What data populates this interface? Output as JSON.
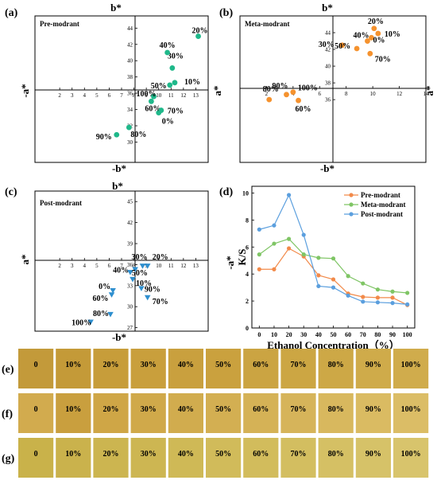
{
  "panels": {
    "a": {
      "label": "(a)",
      "box_title": "Pre-modrant",
      "b_pos": "b*",
      "b_neg": "-b*",
      "a_neg": "-a*",
      "a_pos": "a*",
      "yticks": [
        30,
        32,
        34,
        36,
        38,
        40,
        42,
        44
      ],
      "xticks": [
        2,
        3,
        4,
        5,
        6,
        7,
        8,
        9,
        10,
        11,
        12,
        13
      ]
    },
    "b": {
      "label": "(b)",
      "box_title": "Meta-modrant",
      "b_pos": "b*",
      "b_neg": "-b*",
      "a_neg": "a*",
      "a_pos": "a*",
      "yticks": [
        36,
        38,
        40,
        42,
        44
      ],
      "xticks": [
        2,
        4,
        6,
        8,
        10,
        12,
        14
      ]
    },
    "c": {
      "label": "(c)",
      "box_title": "Post-modrant",
      "b_pos": "b*",
      "b_neg": "-b*",
      "a_neg": "a*",
      "a_pos": "a*",
      "yticks": [
        27,
        30,
        33,
        36,
        39,
        42,
        45
      ],
      "xticks": [
        2,
        3,
        4,
        5,
        6,
        7,
        8,
        9,
        10,
        11,
        12,
        13
      ]
    },
    "d": {
      "label": "(d)",
      "a_label": "-a*"
    }
  },
  "chart_data": [
    {
      "type": "scatter",
      "panel": "a",
      "title": "Pre-modrant",
      "xlabel": "a*",
      "ylabel": "b*",
      "xlim": [
        0,
        14
      ],
      "ylim": [
        27.5,
        45.5
      ],
      "color": "#1fb88a",
      "points": [
        {
          "label": "0%",
          "x": 10.0,
          "y": 33.6
        },
        {
          "label": "10%",
          "x": 11.3,
          "y": 37.3
        },
        {
          "label": "20%",
          "x": 13.2,
          "y": 43.0
        },
        {
          "label": "30%",
          "x": 11.1,
          "y": 39.1
        },
        {
          "label": "40%",
          "x": 10.7,
          "y": 41.0
        },
        {
          "label": "50%",
          "x": 10.9,
          "y": 37.0
        },
        {
          "label": "60%",
          "x": 9.4,
          "y": 35.0
        },
        {
          "label": "70%",
          "x": 10.2,
          "y": 33.9
        },
        {
          "label": "80%",
          "x": 7.6,
          "y": 31.8
        },
        {
          "label": "90%",
          "x": 6.6,
          "y": 30.9
        },
        {
          "label": "100%",
          "x": 9.6,
          "y": 35.6
        }
      ]
    },
    {
      "type": "scatter",
      "panel": "b",
      "title": "Meta-modrant",
      "xlabel": "a*",
      "ylabel": "b*",
      "xlim": [
        0,
        14
      ],
      "ylim": [
        28.5,
        46
      ],
      "color": "#f5922e",
      "points": [
        {
          "label": "0%",
          "x": 9.9,
          "y": 43.4
        },
        {
          "label": "10%",
          "x": 10.4,
          "y": 43.9
        },
        {
          "label": "20%",
          "x": 10.1,
          "y": 44.5
        },
        {
          "label": "30%",
          "x": 7.7,
          "y": 42.5
        },
        {
          "label": "40%",
          "x": 9.6,
          "y": 43.0
        },
        {
          "label": "50%",
          "x": 8.8,
          "y": 42.1
        },
        {
          "label": "60%",
          "x": 4.4,
          "y": 35.9
        },
        {
          "label": "70%",
          "x": 9.8,
          "y": 41.5
        },
        {
          "label": "80%",
          "x": 2.2,
          "y": 36.0
        },
        {
          "label": "90%",
          "x": 3.5,
          "y": 36.6
        },
        {
          "label": "100%",
          "x": 4.0,
          "y": 36.9
        }
      ]
    },
    {
      "type": "scatter",
      "panel": "c",
      "title": "Post-modrant",
      "xlabel": "a*",
      "ylabel": "b*",
      "xlim": [
        0,
        14
      ],
      "ylim": [
        26.5,
        46.5
      ],
      "color": "#2e8fcf",
      "points": [
        {
          "label": "0%",
          "x": 6.3,
          "y": 32.3
        },
        {
          "label": "10%",
          "x": 7.9,
          "y": 33.9
        },
        {
          "label": "20%",
          "x": 9.1,
          "y": 35.8
        },
        {
          "label": "30%",
          "x": 8.7,
          "y": 35.8
        },
        {
          "label": "40%",
          "x": 8.1,
          "y": 35.3
        },
        {
          "label": "50%",
          "x": 7.7,
          "y": 34.9
        },
        {
          "label": "60%",
          "x": 6.2,
          "y": 31.7
        },
        {
          "label": "70%",
          "x": 9.1,
          "y": 31.3
        },
        {
          "label": "80%",
          "x": 6.1,
          "y": 28.9
        },
        {
          "label": "90%",
          "x": 8.6,
          "y": 32.6
        },
        {
          "label": "100%",
          "x": 4.5,
          "y": 27.8
        }
      ]
    },
    {
      "type": "line",
      "panel": "d",
      "xlabel": "Ethanol Concentration（%）",
      "ylabel": "K/S",
      "xlim": [
        -5,
        105
      ],
      "ylim": [
        0,
        10.5
      ],
      "x": [
        0,
        10,
        20,
        30,
        40,
        50,
        60,
        70,
        80,
        90,
        100
      ],
      "xticks": [
        0,
        10,
        20,
        30,
        40,
        50,
        60,
        70,
        80,
        90,
        100
      ],
      "yticks": [
        0,
        2,
        4,
        6,
        8,
        10
      ],
      "legend_position": "top-right",
      "series": [
        {
          "name": "Pre-modrant",
          "color": "#f28a4a",
          "values": [
            4.35,
            4.35,
            5.9,
            5.3,
            3.9,
            3.6,
            2.55,
            2.3,
            2.25,
            2.25,
            1.7
          ]
        },
        {
          "name": "Meta-modrant",
          "color": "#7fc565",
          "values": [
            5.45,
            6.25,
            6.6,
            5.45,
            5.2,
            5.15,
            3.85,
            3.3,
            2.85,
            2.7,
            2.6
          ]
        },
        {
          "name": "Post-modrant",
          "color": "#5b9fde",
          "values": [
            7.3,
            7.6,
            9.85,
            6.9,
            3.1,
            3.0,
            2.4,
            1.95,
            1.9,
            1.85,
            1.75
          ]
        }
      ]
    }
  ],
  "swatches": {
    "rows": [
      {
        "label": "(e)",
        "cells": [
          "0",
          "10%",
          "20%",
          "30%",
          "40%",
          "50%",
          "60%",
          "70%",
          "80%",
          "90%",
          "100%"
        ],
        "colors": [
          "#c39a3a",
          "#c49a38",
          "#c79d3a",
          "#c99f3c",
          "#c9a03e",
          "#caa13e",
          "#cba442",
          "#cca643",
          "#cda846",
          "#cfab4a",
          "#d0ac4c"
        ]
      },
      {
        "label": "(f)",
        "cells": [
          "0",
          "10%",
          "20%",
          "30%",
          "40%",
          "50%",
          "60%",
          "70%",
          "80%",
          "90%",
          "100%"
        ],
        "colors": [
          "#d2ab4e",
          "#c99f3e",
          "#cfa646",
          "#d0a94a",
          "#d1ac4e",
          "#d3af52",
          "#d5b256",
          "#d6b45a",
          "#d8b85e",
          "#dabb62",
          "#dbbd66"
        ]
      },
      {
        "label": "(g)",
        "cells": [
          "0",
          "10%",
          "20%",
          "30%",
          "40%",
          "50%",
          "60%",
          "70%",
          "80%",
          "90%",
          "100%"
        ],
        "colors": [
          "#c9b24a",
          "#cab24c",
          "#ccb550",
          "#cdb652",
          "#cfb956",
          "#d1bb5a",
          "#d2bc5c",
          "#d3be60",
          "#d5c064",
          "#d6c268",
          "#d8c46c"
        ]
      }
    ]
  }
}
